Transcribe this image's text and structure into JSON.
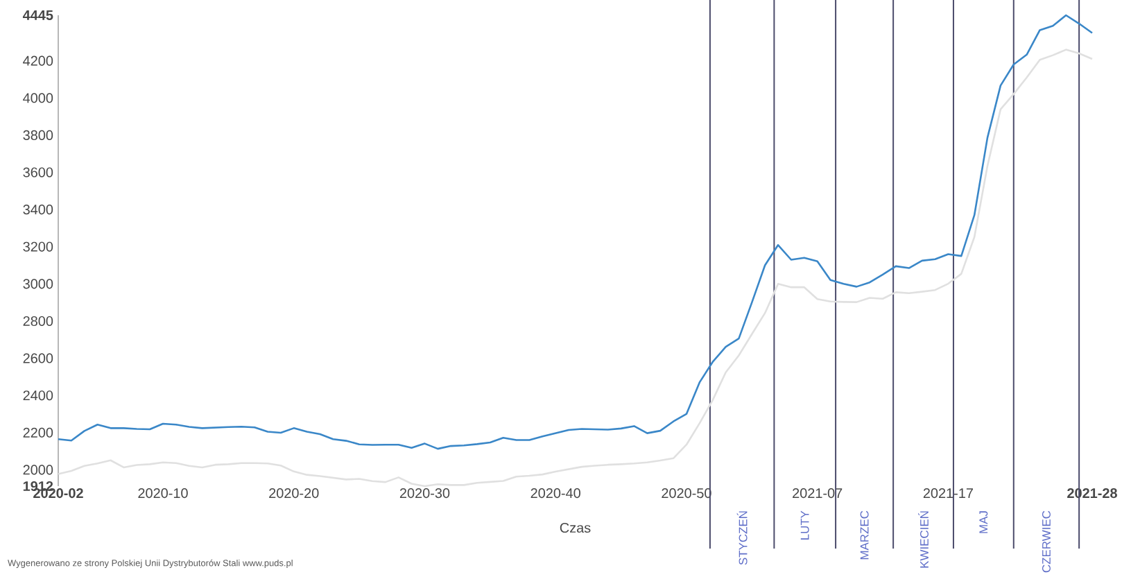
{
  "chart_data": {
    "type": "line",
    "xlabel": "Czas",
    "categories": [
      "2020-02",
      null,
      null,
      null,
      null,
      null,
      null,
      null,
      "2020-10",
      null,
      null,
      null,
      null,
      null,
      null,
      null,
      null,
      null,
      "2020-20",
      null,
      null,
      null,
      null,
      null,
      null,
      null,
      null,
      null,
      "2020-30",
      null,
      null,
      null,
      null,
      null,
      null,
      null,
      null,
      null,
      "2020-40",
      null,
      null,
      null,
      null,
      null,
      null,
      null,
      null,
      null,
      "2020-50",
      null,
      null,
      null,
      null,
      null,
      null,
      null,
      null,
      null,
      "2021-07",
      null,
      null,
      null,
      null,
      null,
      null,
      null,
      null,
      null,
      "2021-17",
      null,
      null,
      null,
      null,
      null,
      null,
      null,
      null,
      null,
      null,
      "2021-28"
    ],
    "ylim": [
      1912,
      4445
    ],
    "yticks": [
      1912,
      2000,
      2200,
      2400,
      2600,
      2800,
      3000,
      3200,
      3400,
      3600,
      3800,
      4000,
      4200,
      4445
    ],
    "series": [
      {
        "color": "#3a87c8",
        "values": [
          2165,
          2157,
          2209,
          2243,
          2224,
          2224,
          2220,
          2218,
          2248,
          2243,
          2231,
          2224,
          2227,
          2230,
          2232,
          2228,
          2205,
          2199,
          2224,
          2205,
          2192,
          2165,
          2156,
          2137,
          2134,
          2135,
          2135,
          2118,
          2141,
          2113,
          2128,
          2131,
          2138,
          2147,
          2172,
          2160,
          2160,
          2180,
          2197,
          2214,
          2220,
          2218,
          2216,
          2222,
          2235,
          2197,
          2210,
          2260,
          2300,
          2470,
          2580,
          2661,
          2706,
          2900,
          3100,
          3209,
          3130,
          3140,
          3122,
          3021,
          3000,
          2985,
          3008,
          3050,
          3095,
          3085,
          3125,
          3133,
          3160,
          3150,
          3370,
          3787,
          4067,
          4180,
          4233,
          4365,
          4388,
          4445,
          4400,
          4350
        ]
      },
      {
        "color": "#e0e0e0",
        "values": [
          1977,
          1994,
          2021,
          2034,
          2051,
          2013,
          2026,
          2030,
          2040,
          2036,
          2021,
          2013,
          2027,
          2030,
          2036,
          2036,
          2034,
          2023,
          1991,
          1973,
          1966,
          1957,
          1948,
          1951,
          1939,
          1934,
          1959,
          1925,
          1912,
          1922,
          1918,
          1918,
          1930,
          1935,
          1940,
          1963,
          1968,
          1975,
          1990,
          2003,
          2016,
          2022,
          2027,
          2030,
          2034,
          2040,
          2050,
          2062,
          2135,
          2250,
          2374,
          2524,
          2615,
          2730,
          2843,
          3000,
          2982,
          2982,
          2918,
          2905,
          2903,
          2902,
          2925,
          2920,
          2955,
          2950,
          2958,
          2967,
          3001,
          3054,
          3252,
          3635,
          3939,
          4021,
          4110,
          4205,
          4230,
          4260,
          4240,
          4210
        ]
      }
    ],
    "annotations": [
      "Wygenerowano ze strony Polskiej Unii Dystrybutorów Stali  www.puds.pl",
      "STYCZEŃ",
      "LUTY",
      "MARZEC",
      "KWIECIEŃ",
      "MAJ",
      "CZERWIEC"
    ],
    "grid": false,
    "marker": "none"
  }
}
